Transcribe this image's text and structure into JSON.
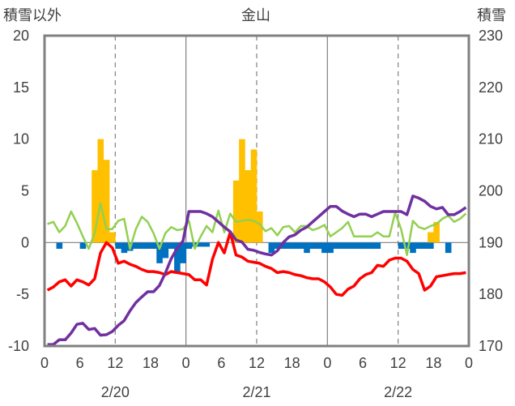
{
  "chart_data": {
    "type": "bar+line",
    "title": "金山",
    "left_axis_label": "積雪以外",
    "right_axis_label": "積雪",
    "left_ylim": [
      -10,
      20
    ],
    "left_yticks": [
      "20",
      "15",
      "10",
      "5",
      "0",
      "-5",
      "-10"
    ],
    "right_ylim": [
      170,
      230
    ],
    "right_yticks": [
      "230",
      "220",
      "210",
      "200",
      "190",
      "180",
      "170"
    ],
    "x_hour_ticks": [
      "0",
      "6",
      "12",
      "18",
      "0",
      "6",
      "12",
      "18",
      "0",
      "6",
      "12",
      "18",
      "0"
    ],
    "date_labels": [
      "2/20",
      "2/21",
      "2/22"
    ],
    "hours": 72,
    "colors": {
      "snowfall": "#ffc000",
      "negative_bar": "#0070c0",
      "temperature": "#ff0000",
      "green_line": "#92d050",
      "snow_depth": "#7030a0",
      "frame": "#808080",
      "grid": "#808080"
    },
    "series": [
      {
        "name": "snowfall",
        "kind": "bar",
        "axis": "left",
        "values": [
          0,
          0,
          0,
          0,
          0,
          0,
          0,
          0,
          7,
          10,
          8,
          1,
          0,
          0,
          0,
          0,
          0,
          0,
          0,
          0,
          0,
          0,
          0,
          0,
          0,
          0,
          0,
          0,
          0,
          0,
          0,
          0,
          6,
          10,
          7,
          9,
          3,
          0,
          0,
          0,
          0,
          0,
          0,
          0,
          0,
          0,
          0,
          0,
          0,
          0,
          0,
          0,
          0,
          0,
          0,
          0,
          0,
          0,
          0,
          0,
          0,
          0,
          0,
          0,
          0,
          1,
          2,
          0,
          0,
          0,
          0,
          0
        ]
      },
      {
        "name": "negative-component",
        "kind": "bar",
        "axis": "left",
        "values": [
          0,
          0,
          -0.6,
          0,
          0,
          0,
          -0.6,
          0,
          0,
          0,
          0,
          0,
          -0.6,
          -1,
          -0.8,
          -0.6,
          -0.6,
          -0.6,
          -0.6,
          -2,
          -1.5,
          -0.6,
          -3,
          -2,
          -0.6,
          -0.4,
          -0.4,
          -0.4,
          0,
          0,
          0,
          0,
          0,
          0,
          0,
          0,
          0,
          0,
          -1,
          -0.6,
          -0.6,
          -0.6,
          -0.6,
          -0.6,
          -1,
          -0.6,
          -0.6,
          -1,
          -1,
          -0.6,
          -0.6,
          -0.6,
          -0.6,
          -0.6,
          -0.6,
          -0.6,
          -0.6,
          0,
          0,
          0,
          -0.6,
          -0.6,
          -1,
          -0.6,
          -0.6,
          -0.6,
          0,
          0,
          -1,
          0,
          0,
          0
        ]
      },
      {
        "name": "temperature",
        "kind": "line",
        "axis": "left",
        "values": [
          -4.6,
          -4.3,
          -3.8,
          -3.6,
          -4.2,
          -3.6,
          -3.8,
          -4.1,
          -3.5,
          -1,
          0,
          -0.5,
          -2,
          -1.8,
          -2.1,
          -2.3,
          -2.6,
          -2.8,
          -2.8,
          -2.9,
          -3.1,
          -2.8,
          -2.9,
          -3,
          -3.1,
          -3.6,
          -3.6,
          -4.1,
          -1.6,
          0,
          -1,
          1,
          -1.2,
          -1.4,
          -1.8,
          -1.9,
          -2,
          -2.3,
          -2.5,
          -2.9,
          -2.8,
          -2.9,
          -3.1,
          -3.2,
          -3.4,
          -3.5,
          -3.5,
          -3.8,
          -4.3,
          -5,
          -5.1,
          -4.5,
          -4.2,
          -3.5,
          -3.1,
          -2.9,
          -2.2,
          -2.3,
          -1.7,
          -1.5,
          -1.5,
          -1.8,
          -2.6,
          -3,
          -4.6,
          -4.2,
          -3.3,
          -3.2,
          -3.1,
          -3,
          -3,
          -2.9
        ]
      },
      {
        "name": "green-line",
        "kind": "line",
        "axis": "left",
        "values": [
          1.8,
          2,
          1,
          1.6,
          3,
          1.9,
          0.6,
          -0.6,
          0.9,
          3.8,
          1.3,
          1.3,
          2.1,
          2.3,
          -0.6,
          1.3,
          2.5,
          2,
          0.9,
          -0.6,
          0.9,
          1.5,
          1.2,
          1.3,
          2.1,
          -0.6,
          0.6,
          1.6,
          1,
          3.1,
          1,
          2.8,
          2,
          2.1,
          2.2,
          2.1,
          1.8,
          1.1,
          1.4,
          0.7,
          1.5,
          1.6,
          1,
          1.6,
          1.6,
          1.2,
          1.4,
          1.7,
          0.6,
          1,
          1.4,
          2,
          0.6,
          0.6,
          0.6,
          0.6,
          1,
          0.6,
          0.6,
          2.9,
          1.3,
          -1.2,
          2.1,
          1.5,
          1.3,
          1.6,
          1.8,
          2.3,
          2.6,
          2,
          2.3,
          2.8
        ]
      },
      {
        "name": "snow-depth",
        "kind": "line",
        "axis": "right",
        "values": [
          170.3,
          170.3,
          171.2,
          171.2,
          172.5,
          174.2,
          174.4,
          173.2,
          173.4,
          172.1,
          172.2,
          172.8,
          174,
          174.9,
          176.8,
          178.4,
          179.5,
          180.5,
          180.5,
          181.7,
          184.1,
          186.9,
          188.9,
          190.3,
          196,
          196,
          196,
          195.6,
          195,
          194,
          193,
          192.1,
          190.5,
          190.1,
          188.7,
          188.5,
          188.1,
          187.8,
          187.6,
          188.4,
          190,
          191.1,
          191.5,
          192.4,
          193,
          194,
          195,
          196,
          197,
          197,
          196.1,
          195.5,
          195,
          195.5,
          195.5,
          195,
          195.5,
          196,
          196,
          196,
          196,
          195.4,
          199,
          198.6,
          198,
          197,
          196.5,
          196.8,
          195.4,
          195.4,
          196,
          196.8
        ]
      }
    ]
  }
}
